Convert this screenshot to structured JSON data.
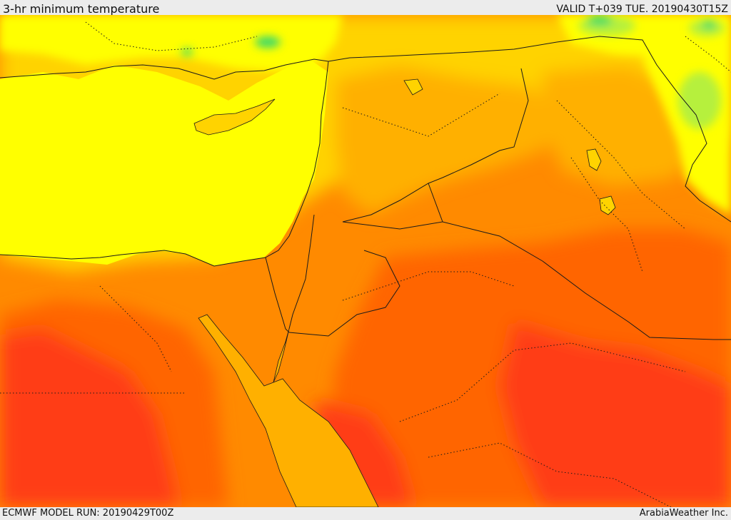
{
  "header": {
    "title": "3-hr minimum temperature",
    "valid": "VALID T+039 TUE. 20190430T15Z"
  },
  "footer": {
    "model_run": "ECMWF MODEL RUN: 20190429T00Z",
    "credit": "ArabiaWeather Inc."
  },
  "palette": {
    "cold_green": "#39d96b",
    "light_green": "#b6f03c",
    "yellow": "#ffff00",
    "yellow_orange": "#ffd300",
    "light_orange": "#ffb000",
    "orange": "#ff8a00",
    "deep_orange": "#ff6500",
    "red_orange": "#ff3d14",
    "border_color": "#1a1a1a"
  }
}
